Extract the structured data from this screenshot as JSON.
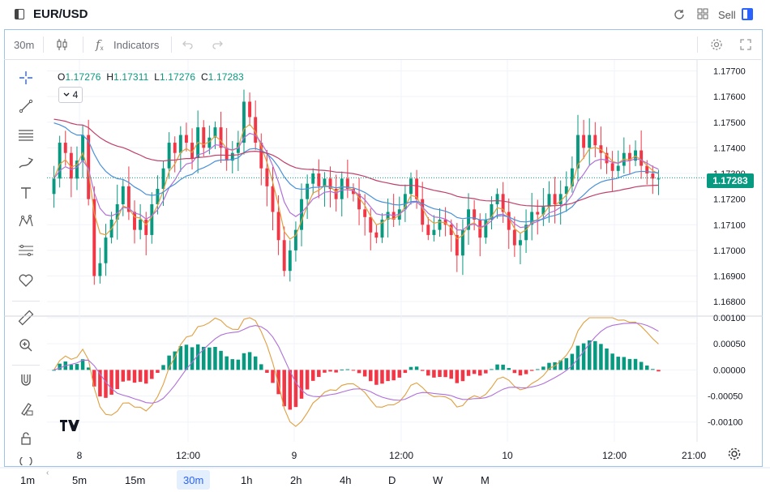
{
  "header": {
    "symbol": "EUR/USD",
    "sell_label": "Sell",
    "icons": [
      "panel-toggle-icon",
      "reload-icon",
      "layout-grid-icon",
      "sell-panel-icon"
    ]
  },
  "toolbar": {
    "interval": "30m",
    "indicators_label": "Indicators",
    "icons": [
      "candles-icon",
      "indicators-icon",
      "undo-icon",
      "redo-icon",
      "settings-icon",
      "fullscreen-icon"
    ]
  },
  "legend": {
    "o_key": "O",
    "o_val": "1.17276",
    "h_key": "H",
    "h_val": "1.17311",
    "l_key": "L",
    "l_val": "1.17276",
    "c_key": "C",
    "c_val": "1.17283",
    "indicator_count": "4"
  },
  "left_tools": [
    "crosshair-icon",
    "trendline-icon",
    "horizontal-lines-icon",
    "brush-icon",
    "text-icon",
    "pattern-icon",
    "fib-icon",
    "favorite-heart-icon",
    "ruler-icon",
    "zoom-icon",
    "magnet-icon",
    "lock-drawings-icon",
    "lock-icon",
    "hide-icon"
  ],
  "price_axis": {
    "ticks": [
      "1.17700",
      "1.17600",
      "1.17500",
      "1.17400",
      "1.17300",
      "1.17200",
      "1.17100",
      "1.17000",
      "1.16900",
      "1.16800"
    ],
    "current_price": "1.17283"
  },
  "osc_axis": {
    "ticks": [
      "0.00100",
      "0.00050",
      "0.00000",
      "-0.00050",
      "-0.00100"
    ]
  },
  "time_axis": {
    "ticks": [
      "8",
      "12:00",
      "9",
      "12:00",
      "10",
      "12:00",
      "21:00"
    ]
  },
  "timeframes": {
    "items": [
      "1m",
      "5m",
      "15m",
      "30m",
      "1h",
      "2h",
      "4h",
      "D",
      "W",
      "M"
    ],
    "active": "30m"
  },
  "colors": {
    "up": "#089981",
    "down": "#f23645",
    "accent": "#2962ff",
    "ma_orange": "#e0a040",
    "ma_purple": "#b070d8",
    "ma_blue": "#4a90d9",
    "ma_maroon": "#c0406a"
  },
  "chart_data": [
    {
      "type": "candlestick",
      "title": "EUR/USD",
      "interval": "30m",
      "ylim": [
        1.1675,
        1.1773
      ],
      "x_ticks": [
        "8",
        "12:00",
        "9",
        "12:00",
        "10",
        "12:00",
        "21:00"
      ],
      "last_price": 1.17283,
      "close_series": [
        1.1728,
        1.1742,
        1.1738,
        1.1728,
        1.1735,
        1.1745,
        1.172,
        1.169,
        1.1695,
        1.1705,
        1.1712,
        1.1718,
        1.1725,
        1.1715,
        1.1708,
        1.1712,
        1.1706,
        1.1718,
        1.1724,
        1.1732,
        1.1742,
        1.1738,
        1.1745,
        1.1742,
        1.1736,
        1.1748,
        1.174,
        1.1744,
        1.1748,
        1.174,
        1.1735,
        1.1738,
        1.1742,
        1.1758,
        1.1752,
        1.1742,
        1.1732,
        1.1725,
        1.1715,
        1.1704,
        1.1692,
        1.17,
        1.1708,
        1.172,
        1.1726,
        1.173,
        1.1725,
        1.1728,
        1.1724,
        1.172,
        1.1728,
        1.1724,
        1.1722,
        1.1716,
        1.1713,
        1.1707,
        1.1705,
        1.1712,
        1.1715,
        1.1712,
        1.1716,
        1.1722,
        1.1728,
        1.172,
        1.171,
        1.1706,
        1.1708,
        1.1712,
        1.171,
        1.1706,
        1.1698,
        1.1708,
        1.1716,
        1.1712,
        1.1705,
        1.1712,
        1.1718,
        1.1722,
        1.1715,
        1.1708,
        1.1702,
        1.1704,
        1.171,
        1.1715,
        1.1714,
        1.1717,
        1.1722,
        1.1718,
        1.1722,
        1.1725,
        1.1732,
        1.1745,
        1.174,
        1.1745,
        1.1741,
        1.1738,
        1.1734,
        1.1731,
        1.1733,
        1.1738,
        1.1735,
        1.1739,
        1.1733,
        1.173,
        1.1728,
        1.1728
      ],
      "series": [
        {
          "name": "",
          "color": "#e0a040"
        },
        {
          "name": "",
          "color": "#b070d8"
        },
        {
          "name": "",
          "color": "#4a90d9"
        },
        {
          "name": "",
          "color": "#c0406a"
        }
      ]
    },
    {
      "type": "bar",
      "ylim": [
        -0.0013,
        0.001
      ],
      "y_ticks": [
        "0.00100",
        "0.00050",
        "0.00000",
        "-0.00050",
        "-0.00100"
      ]
    }
  ]
}
